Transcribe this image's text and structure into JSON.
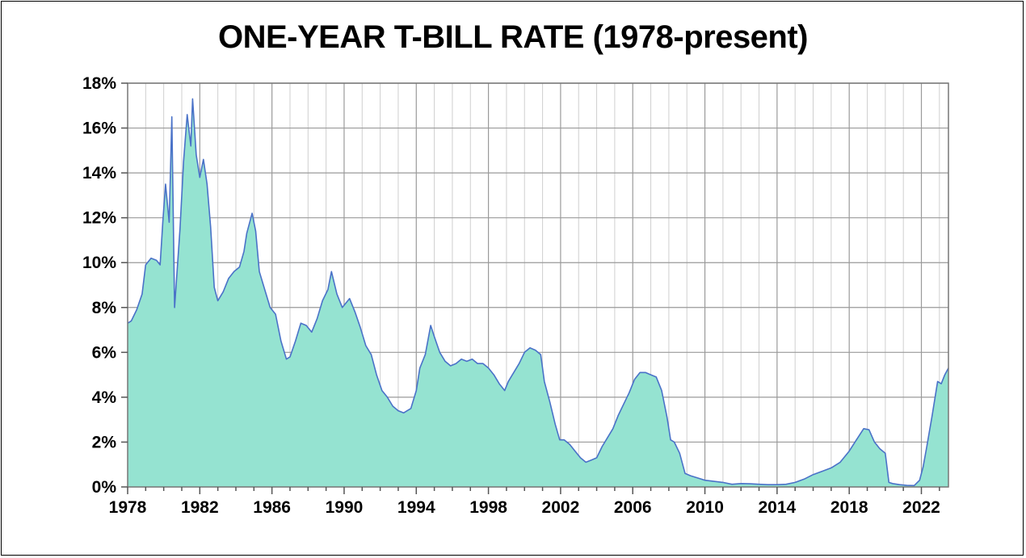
{
  "chart_data": {
    "type": "area",
    "title": "ONE-YEAR T-BILL RATE (1978-present)",
    "xlabel": "",
    "ylabel": "",
    "x_ticks": [
      "1978",
      "1982",
      "1986",
      "1990",
      "1994",
      "1998",
      "2002",
      "2006",
      "2010",
      "2014",
      "2018",
      "2022"
    ],
    "y_ticks": [
      "0%",
      "2%",
      "4%",
      "6%",
      "8%",
      "10%",
      "12%",
      "14%",
      "16%",
      "18%"
    ],
    "xlim": [
      1978,
      2023.5
    ],
    "ylim": [
      0,
      18
    ],
    "grid": true,
    "fill_color": "#95e3d1",
    "line_color": "#4a72c8",
    "grid_color": "#9a9a9a",
    "series": [
      {
        "x": [
          1978.0,
          1978.2,
          1978.5,
          1978.8,
          1979.0,
          1979.3,
          1979.6,
          1979.8,
          1979.95,
          1980.1,
          1980.3,
          1980.45,
          1980.6,
          1980.9,
          1981.1,
          1981.3,
          1981.5,
          1981.6,
          1981.8,
          1982.0,
          1982.2,
          1982.4,
          1982.6,
          1982.8,
          1983.0,
          1983.3,
          1983.6,
          1983.9,
          1984.2,
          1984.45,
          1984.6,
          1984.9,
          1985.1,
          1985.3,
          1985.6,
          1985.9,
          1986.2,
          1986.5,
          1986.8,
          1987.0,
          1987.3,
          1987.6,
          1987.9,
          1988.2,
          1988.5,
          1988.8,
          1989.1,
          1989.3,
          1989.6,
          1989.9,
          1990.1,
          1990.3,
          1990.6,
          1990.9,
          1991.2,
          1991.5,
          1991.8,
          1992.1,
          1992.4,
          1992.7,
          1993.0,
          1993.3,
          1993.7,
          1994.0,
          1994.2,
          1994.5,
          1994.8,
          1995.0,
          1995.3,
          1995.6,
          1995.9,
          1996.2,
          1996.5,
          1996.8,
          1997.1,
          1997.4,
          1997.7,
          1998.0,
          1998.3,
          1998.6,
          1998.9,
          1999.1,
          1999.4,
          1999.7,
          2000.0,
          2000.3,
          2000.6,
          2000.9,
          2001.1,
          2001.4,
          2001.7,
          2001.95,
          2002.2,
          2002.5,
          2002.8,
          2003.1,
          2003.4,
          2003.7,
          2004.0,
          2004.3,
          2004.6,
          2004.9,
          2005.2,
          2005.5,
          2005.8,
          2006.1,
          2006.4,
          2006.7,
          2007.0,
          2007.3,
          2007.6,
          2007.9,
          2008.1,
          2008.3,
          2008.6,
          2008.9,
          2009.2,
          2009.6,
          2010.0,
          2010.5,
          2011.0,
          2011.5,
          2012.0,
          2012.5,
          2013.0,
          2013.5,
          2014.0,
          2014.5,
          2015.0,
          2015.5,
          2016.0,
          2016.5,
          2017.0,
          2017.5,
          2018.0,
          2018.4,
          2018.8,
          2019.1,
          2019.4,
          2019.7,
          2020.0,
          2020.2,
          2020.4,
          2020.8,
          2021.2,
          2021.6,
          2021.9,
          2022.1,
          2022.3,
          2022.6,
          2022.9,
          2023.1,
          2023.3,
          2023.5
        ],
        "y": [
          7.3,
          7.4,
          7.9,
          8.6,
          9.9,
          10.2,
          10.1,
          9.9,
          11.8,
          13.5,
          11.8,
          16.5,
          8.0,
          11.5,
          14.5,
          16.6,
          15.2,
          17.3,
          14.8,
          13.8,
          14.6,
          13.5,
          11.6,
          8.9,
          8.3,
          8.7,
          9.3,
          9.6,
          9.8,
          10.5,
          11.3,
          12.2,
          11.4,
          9.6,
          8.8,
          8.0,
          7.7,
          6.5,
          5.7,
          5.8,
          6.5,
          7.3,
          7.2,
          6.9,
          7.5,
          8.3,
          8.8,
          9.6,
          8.6,
          8.0,
          8.2,
          8.4,
          7.8,
          7.1,
          6.3,
          5.9,
          5.0,
          4.3,
          4.0,
          3.6,
          3.4,
          3.3,
          3.5,
          4.3,
          5.3,
          5.9,
          7.2,
          6.7,
          6.0,
          5.6,
          5.4,
          5.5,
          5.7,
          5.6,
          5.7,
          5.5,
          5.5,
          5.3,
          5.0,
          4.6,
          4.3,
          4.7,
          5.1,
          5.5,
          6.0,
          6.2,
          6.1,
          5.9,
          4.7,
          3.8,
          2.8,
          2.1,
          2.1,
          1.9,
          1.6,
          1.3,
          1.1,
          1.2,
          1.3,
          1.8,
          2.2,
          2.6,
          3.2,
          3.7,
          4.2,
          4.8,
          5.1,
          5.1,
          5.0,
          4.9,
          4.3,
          3.1,
          2.1,
          2.0,
          1.5,
          0.6,
          0.5,
          0.4,
          0.3,
          0.25,
          0.2,
          0.12,
          0.15,
          0.14,
          0.12,
          0.1,
          0.1,
          0.12,
          0.2,
          0.35,
          0.55,
          0.7,
          0.85,
          1.1,
          1.6,
          2.1,
          2.6,
          2.55,
          2.0,
          1.7,
          1.5,
          0.2,
          0.15,
          0.1,
          0.07,
          0.06,
          0.3,
          0.9,
          1.8,
          3.2,
          4.7,
          4.6,
          5.0,
          5.3
        ]
      }
    ]
  }
}
